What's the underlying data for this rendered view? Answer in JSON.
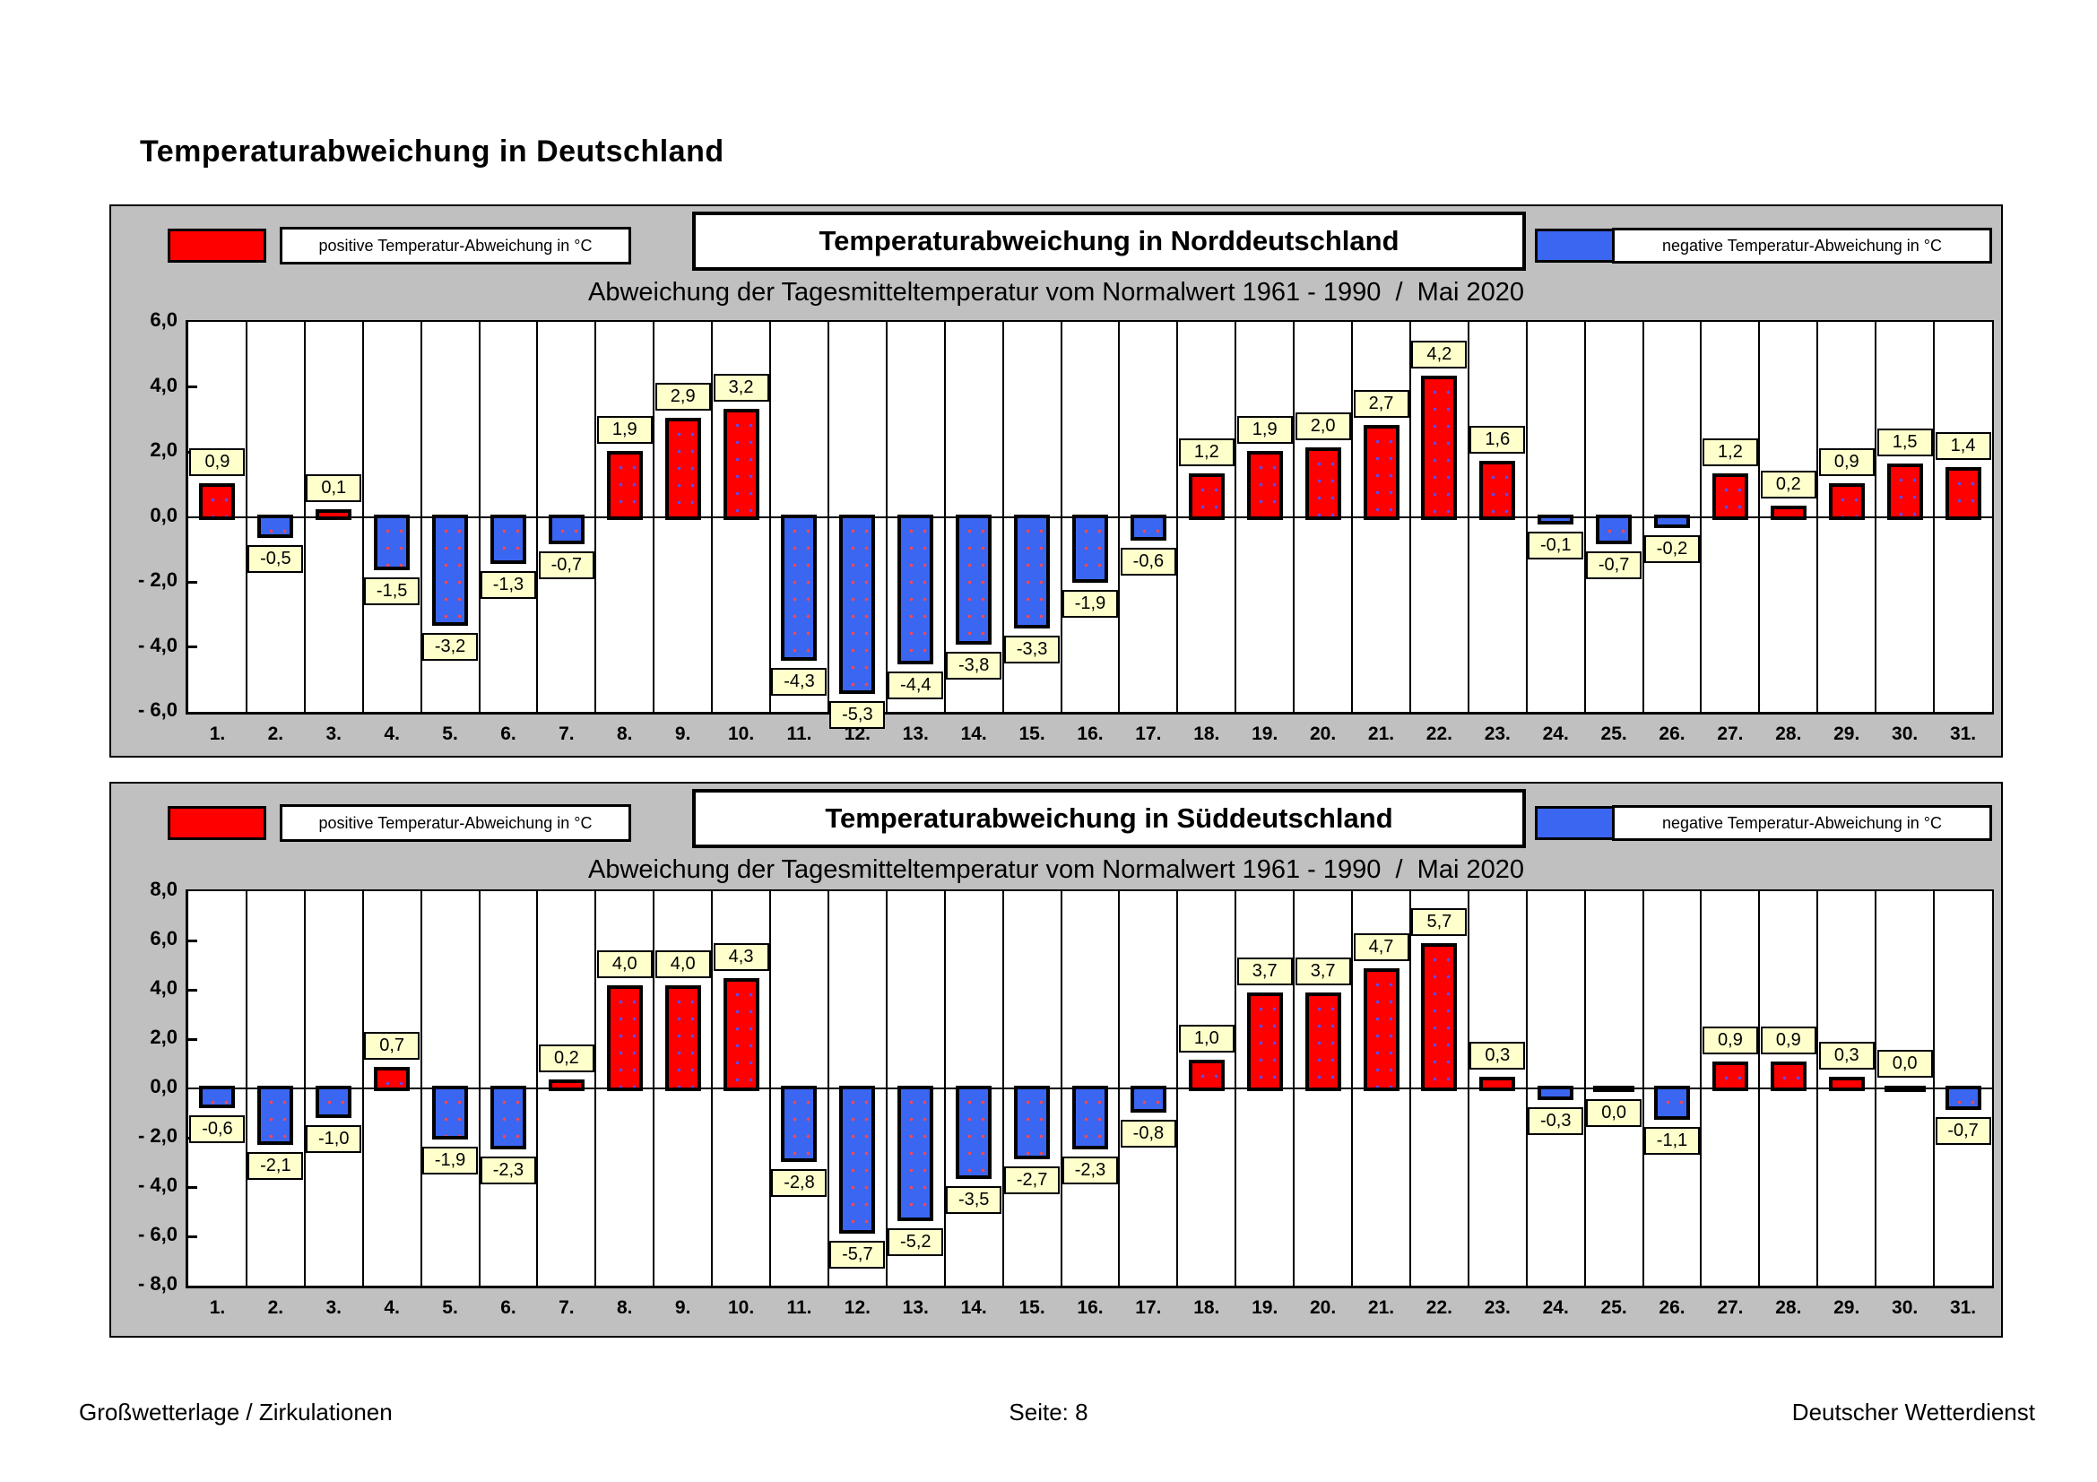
{
  "page": {
    "title": "Temperaturabweichung in Deutschland",
    "footer": {
      "left": "Großwetterlage / Zirkulationen",
      "center": "Seite: 8",
      "right": "Deutscher Wetterdienst"
    }
  },
  "colors": {
    "positive": "#ff0000",
    "negative": "#3a66f2",
    "panel_background": "#c0c0c0",
    "value_label_background": "#ffffcc"
  },
  "chart_data": [
    {
      "type": "bar",
      "title": "Temperaturabweichung in Norddeutschland",
      "subtitle": "Abweichung der Tagesmitteltemperatur vom Normalwert 1961 - 1990  /  Mai 2020",
      "legend": [
        {
          "label": "positive Temperatur-Abweichung in °C",
          "color": "#ff0000"
        },
        {
          "label": "negative Temperatur-Abweichung in °C",
          "color": "#3a66f2"
        }
      ],
      "xlabel": "",
      "ylabel": "",
      "ylim": [
        -6,
        6
      ],
      "ytick_labels": [
        "6,0",
        "4,0",
        "2,0",
        "0,0",
        "- 2,0",
        "- 4,0",
        "- 6,0"
      ],
      "grid": "vertical-column-separators-only",
      "legend_position": "top",
      "categories": [
        "1.",
        "2.",
        "3.",
        "4.",
        "5.",
        "6.",
        "7.",
        "8.",
        "9.",
        "10.",
        "11.",
        "12.",
        "13.",
        "14.",
        "15.",
        "16.",
        "17.",
        "18.",
        "19.",
        "20.",
        "21.",
        "22.",
        "23.",
        "24.",
        "25.",
        "26.",
        "27.",
        "28.",
        "29.",
        "30.",
        "31."
      ],
      "values": [
        0.9,
        -0.5,
        0.1,
        -1.5,
        -3.2,
        -1.3,
        -0.7,
        1.9,
        2.9,
        3.2,
        -4.3,
        -5.3,
        -4.4,
        -3.8,
        -3.3,
        -1.9,
        -0.6,
        1.2,
        1.9,
        2.0,
        2.7,
        4.2,
        1.6,
        -0.1,
        -0.7,
        -0.2,
        1.2,
        0.2,
        0.9,
        1.5,
        1.4
      ],
      "value_labels": [
        "0,9",
        "-0,5",
        "0,1",
        "-1,5",
        "-3,2",
        "-1,3",
        "-0,7",
        "1,9",
        "2,9",
        "3,2",
        "-4,3",
        "-5,3",
        "-4,4",
        "-3,8",
        "-3,3",
        "-1,9",
        "-0,6",
        "1,2",
        "1,9",
        "2,0",
        "2,7",
        "4,2",
        "1,6",
        "-0,1",
        "-0,7",
        "-0,2",
        "1,2",
        "0,2",
        "0,9",
        "1,5",
        "1,4"
      ],
      "below_label_indices": []
    },
    {
      "type": "bar",
      "title": "Temperaturabweichung in Süddeutschland",
      "subtitle": "Abweichung der Tagesmitteltemperatur vom Normalwert 1961 - 1990  /  Mai 2020",
      "legend": [
        {
          "label": "positive Temperatur-Abweichung in °C",
          "color": "#ff0000"
        },
        {
          "label": "negative Temperatur-Abweichung in °C",
          "color": "#3a66f2"
        }
      ],
      "xlabel": "",
      "ylabel": "",
      "ylim": [
        -8,
        8
      ],
      "ytick_labels": [
        "8,0",
        "6,0",
        "4,0",
        "2,0",
        "0,0",
        "- 2,0",
        "- 4,0",
        "- 6,0",
        "- 8,0"
      ],
      "grid": "vertical-column-separators-only",
      "legend_position": "top",
      "categories": [
        "1.",
        "2.",
        "3.",
        "4.",
        "5.",
        "6.",
        "7.",
        "8.",
        "9.",
        "10.",
        "11.",
        "12.",
        "13.",
        "14.",
        "15.",
        "16.",
        "17.",
        "18.",
        "19.",
        "20.",
        "21.",
        "22.",
        "23.",
        "24.",
        "25.",
        "26.",
        "27.",
        "28.",
        "29.",
        "30.",
        "31."
      ],
      "values": [
        -0.6,
        -2.1,
        -1.0,
        0.7,
        -1.9,
        -2.3,
        0.2,
        4.0,
        4.0,
        4.3,
        -2.8,
        -5.7,
        -5.2,
        -3.5,
        -2.7,
        -2.3,
        -0.8,
        1.0,
        3.7,
        3.7,
        4.7,
        5.7,
        0.3,
        -0.3,
        0.0,
        -1.1,
        0.9,
        0.9,
        0.3,
        0.0,
        -0.7
      ],
      "value_labels": [
        "-0,6",
        "-2,1",
        "-1,0",
        "0,7",
        "-1,9",
        "-2,3",
        "0,2",
        "4,0",
        "4,0",
        "4,3",
        "-2,8",
        "-5,7",
        "-5,2",
        "-3,5",
        "-2,7",
        "-2,3",
        "-0,8",
        "1,0",
        "3,7",
        "3,7",
        "4,7",
        "5,7",
        "0,3",
        "-0,3",
        "0,0",
        "-1,1",
        "0,9",
        "0,9",
        "0,3",
        "0,0",
        "-0,7"
      ],
      "below_label_indices": [
        24
      ]
    }
  ]
}
